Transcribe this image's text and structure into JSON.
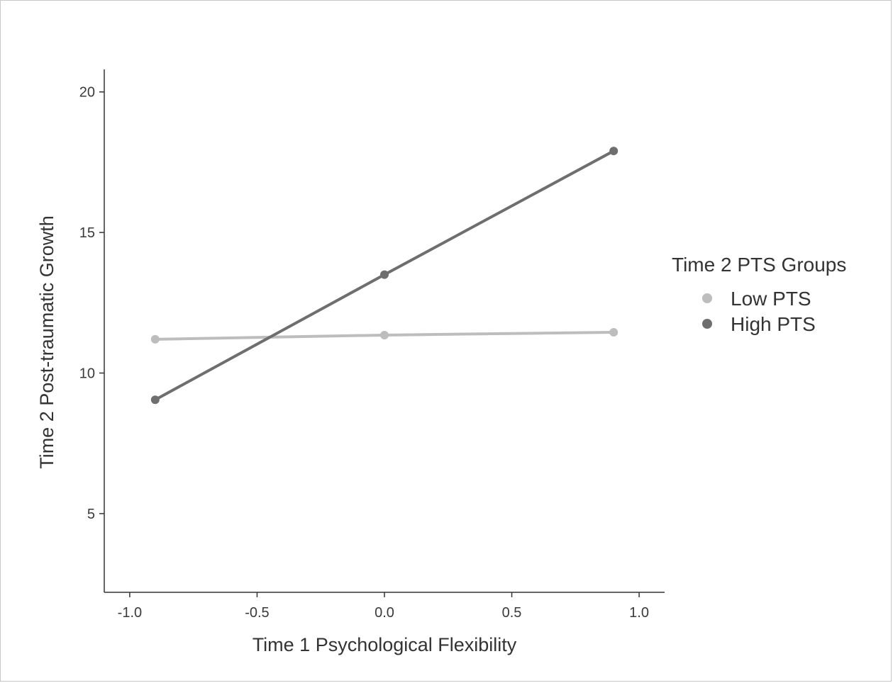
{
  "chart_data": {
    "type": "line",
    "title": "",
    "xlabel": "Time 1 Psychological Flexibility",
    "ylabel": "Time 2 Post-traumatic Growth",
    "xlim": [
      -1.1,
      1.1
    ],
    "ylim": [
      2.2,
      20.8
    ],
    "xticks": [
      -1.0,
      -0.5,
      0.0,
      0.5,
      1.0
    ],
    "xtick_labels": [
      "-1.0",
      "-0.5",
      "0.0",
      "0.5",
      "1.0"
    ],
    "yticks": [
      5,
      10,
      15,
      20
    ],
    "ytick_labels": [
      "5",
      "10",
      "15",
      "20"
    ],
    "grid": false,
    "legend": {
      "title": "Time 2 PTS Groups",
      "placement": "right"
    },
    "series": [
      {
        "name": "Low PTS",
        "color": "#bdbdbd",
        "x": [
          -0.9,
          0.0,
          0.9
        ],
        "y": [
          11.2,
          11.35,
          11.45
        ]
      },
      {
        "name": "High PTS",
        "color": "#6e6e6e",
        "x": [
          -0.9,
          0.0,
          0.9
        ],
        "y": [
          9.05,
          13.5,
          17.9
        ]
      }
    ]
  }
}
